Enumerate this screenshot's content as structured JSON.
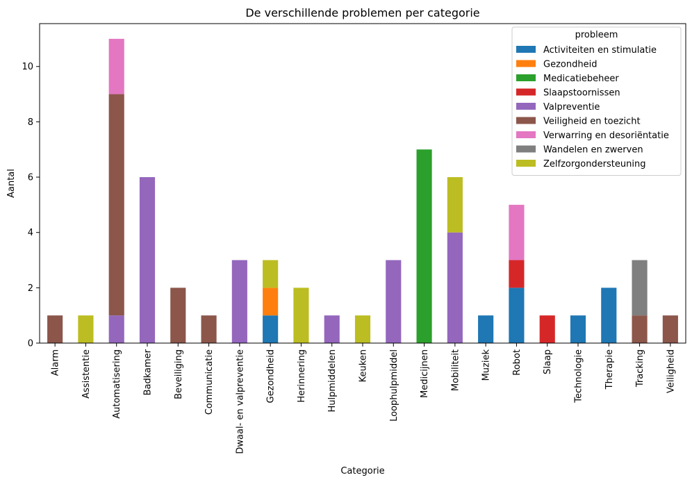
{
  "chart_data": {
    "type": "bar",
    "stacked": true,
    "title": "De verschillende problemen per categorie",
    "xlabel": "Categorie",
    "ylabel": "Aantal",
    "ylim": [
      0,
      11.55
    ],
    "yticks": [
      0,
      2,
      4,
      6,
      8,
      10
    ],
    "grid": false,
    "legend": {
      "title": "probleem",
      "position": "top-right"
    },
    "categories": [
      "Alarm",
      "Assistentie",
      "Automatisering",
      "Badkamer",
      "Beveiliging",
      "Communicatie",
      "Dwaal- en valpreventie",
      "Gezondheid",
      "Herinnering",
      "Hulpmiddelen",
      "Keuken",
      "Loophulpmiddel",
      "Medicijnen",
      "Mobiliteit",
      "Muziek",
      "Robot",
      "Slaap",
      "Technologie",
      "Therapie",
      "Tracking",
      "Veiligheid"
    ],
    "series": [
      {
        "name": "Activiteiten en stimulatie",
        "color": "#1f77b4",
        "values": [
          0,
          0,
          0,
          0,
          0,
          0,
          0,
          1,
          0,
          0,
          0,
          0,
          0,
          0,
          1,
          2,
          0,
          1,
          2,
          0,
          0
        ]
      },
      {
        "name": "Gezondheid",
        "color": "#ff7f0e",
        "values": [
          0,
          0,
          0,
          0,
          0,
          0,
          0,
          1,
          0,
          0,
          0,
          0,
          0,
          0,
          0,
          0,
          0,
          0,
          0,
          0,
          0
        ]
      },
      {
        "name": "Medicatiebeheer",
        "color": "#2ca02c",
        "values": [
          0,
          0,
          0,
          0,
          0,
          0,
          0,
          0,
          0,
          0,
          0,
          0,
          7,
          0,
          0,
          0,
          0,
          0,
          0,
          0,
          0
        ]
      },
      {
        "name": "Slaapstoornissen",
        "color": "#d62728",
        "values": [
          0,
          0,
          0,
          0,
          0,
          0,
          0,
          0,
          0,
          0,
          0,
          0,
          0,
          0,
          0,
          1,
          1,
          0,
          0,
          0,
          0
        ]
      },
      {
        "name": "Valpreventie",
        "color": "#9467bd",
        "values": [
          0,
          0,
          1,
          6,
          0,
          0,
          3,
          0,
          0,
          1,
          0,
          3,
          0,
          4,
          0,
          0,
          0,
          0,
          0,
          0,
          0
        ]
      },
      {
        "name": "Veiligheid en toezicht",
        "color": "#8c564b",
        "values": [
          1,
          0,
          8,
          0,
          2,
          1,
          0,
          0,
          0,
          0,
          0,
          0,
          0,
          0,
          0,
          0,
          0,
          0,
          0,
          1,
          1
        ]
      },
      {
        "name": "Verwarring en desoriëntatie",
        "color": "#e377c2",
        "values": [
          0,
          0,
          2,
          0,
          0,
          0,
          0,
          0,
          0,
          0,
          0,
          0,
          0,
          0,
          0,
          2,
          0,
          0,
          0,
          0,
          0
        ]
      },
      {
        "name": "Wandelen en zwerven",
        "color": "#7f7f7f",
        "values": [
          0,
          0,
          0,
          0,
          0,
          0,
          0,
          0,
          0,
          0,
          0,
          0,
          0,
          0,
          0,
          0,
          0,
          0,
          0,
          2,
          0
        ]
      },
      {
        "name": "Zelfzorgondersteuning",
        "color": "#bcbd22",
        "values": [
          0,
          1,
          0,
          0,
          0,
          0,
          0,
          1,
          2,
          0,
          1,
          0,
          0,
          2,
          0,
          0,
          0,
          0,
          0,
          0,
          0
        ]
      }
    ]
  }
}
